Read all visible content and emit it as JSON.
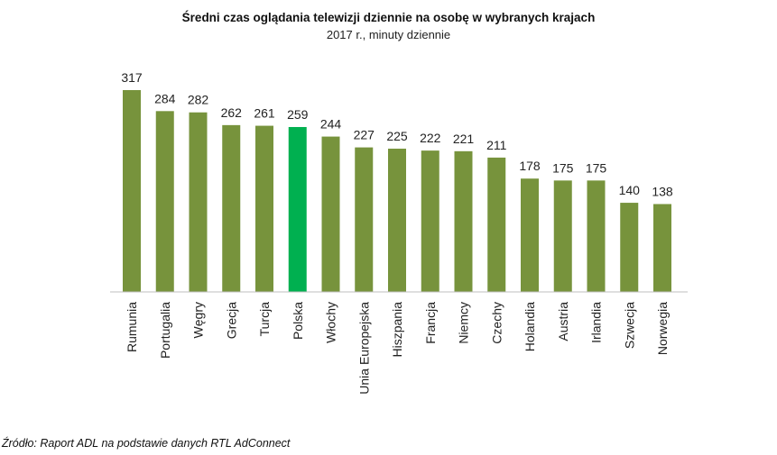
{
  "chart_data": {
    "type": "bar",
    "title": "Średni czas oglądania telewizji dziennie na osobę w wybranych krajach",
    "subtitle": "2017 r., minuty dziennie",
    "xlabel": "",
    "ylabel": "",
    "ylim": [
      0,
      317
    ],
    "grid": false,
    "categories": [
      "Rumunia",
      "Portugalia",
      "Węgry",
      "Grecja",
      "Turcja",
      "Polska",
      "Włochy",
      "Unia Europejska",
      "Hiszpania",
      "Francja",
      "Niemcy",
      "Czechy",
      "Holandia",
      "Austria",
      "Irlandia",
      "Szwecja",
      "Norwegia"
    ],
    "values": [
      317,
      284,
      282,
      262,
      261,
      259,
      244,
      227,
      225,
      222,
      221,
      211,
      178,
      175,
      175,
      140,
      138
    ],
    "highlight": "Polska",
    "colors": {
      "bar": "#77933c",
      "highlight": "#00b050",
      "axis": "#bfbfbf",
      "text": "#222222"
    }
  },
  "source": "Źródło: Raport ADL na podstawie danych RTL AdConnect"
}
